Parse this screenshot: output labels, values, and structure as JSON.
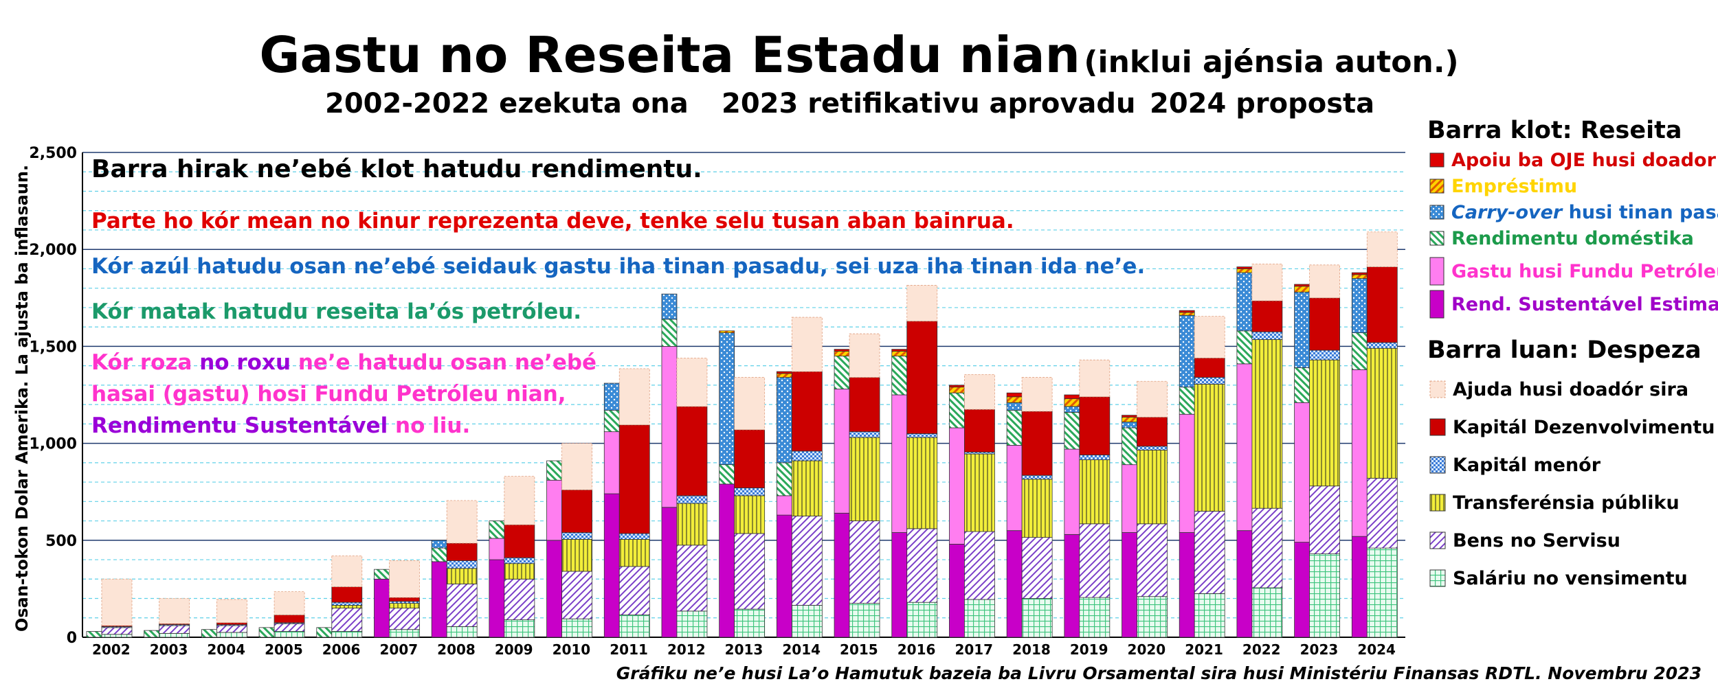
{
  "title": {
    "main": "Gastu no Reseita Estadu nian",
    "suffix": "(inklui ajénsia auton.)",
    "sub1": "2002-2022 ezekuta ona",
    "sub2": "2023 retifikativu aprovadu",
    "sub3": "2024 proposta"
  },
  "source_note": "Gráfiku ne’e husi La’o Hamutuk bazeia ba Livru Orsamental sira husi Ministériu Finansas RDTL.  Novembru 2023",
  "legend": {
    "revenue_heading": "Barra klot: Reseita",
    "spending_heading": "Barra luan: Despeza",
    "revenue": [
      {
        "key": "apoiu",
        "label": "Apoiu ba OJE husi doador",
        "text_color": "#d40000"
      },
      {
        "key": "emprestimu",
        "label": "Empréstimu",
        "text_color": "#ffd400"
      },
      {
        "key": "carry",
        "label_em": "Carry-over",
        "label_rest": " husi tinan pasadu",
        "text_color": "#1565c0"
      },
      {
        "key": "domestic",
        "label": "Rendimentu doméstika",
        "text_color": "#1b9a4a"
      },
      {
        "key": "gastuFP",
        "label": "Gastu husi Fundu Petróleu",
        "text_color": "#ff33cc"
      },
      {
        "key": "esi",
        "label": "Rend. Sustentável Estimadu",
        "text_color": "#a000c8"
      }
    ],
    "spending": [
      {
        "key": "ajuda",
        "label": "Ajuda husi doadór sira"
      },
      {
        "key": "kapitalDez",
        "label": "Kapitál Dezenvolvimentu"
      },
      {
        "key": "kapitalMenor",
        "label": "Kapitál menór"
      },
      {
        "key": "transferensia",
        "label": "Transferénsia públiku"
      },
      {
        "key": "bens",
        "label": "Bens no Servisu"
      },
      {
        "key": "salariu",
        "label": "Saláriu no vensimentu"
      }
    ]
  },
  "annotations": [
    {
      "text": "Barra hirak ne’ebé klot hatudu rendimentu.",
      "color": "#000000"
    },
    {
      "text": "Parte ho kór mean no kinur reprezenta deve, tenke selu tusan aban bainrua.",
      "color": "#e00000"
    },
    {
      "text": "Kór azúl hatudu osan ne’ebé seidauk gastu iha tinan pasadu, sei uza iha tinan ida ne’e.",
      "color": "#1565c0"
    },
    {
      "text": "Kór matak hatudu reseita la’ós petróleu.",
      "color": "#1b9a6a"
    },
    {
      "text": "Kór roza",
      "color": "#ff33cc"
    },
    {
      "text": "no roxu",
      "color": "#9a00d8"
    },
    {
      "text": "ne’e hatudu osan ne’ebé",
      "color": "#ff33cc"
    },
    {
      "text": "hasai (gastu) hosi Fundu Petróleu nian,",
      "color": "#ff33cc"
    },
    {
      "text": "Rendimentu Sustentável",
      "color": "#9a00d8"
    },
    {
      "text": "no liu.",
      "color": "#ff33cc"
    }
  ],
  "colors": {
    "salariu": "#3cc47c",
    "bens": "#7a3fc8",
    "transferensia": "#f2ee3a",
    "kapitalMenor": "#3a7ad6",
    "kapitalDez": "#cc0000",
    "ajuda": "#fce4d6",
    "esi": "#c800c8",
    "gastuFP": "#ff7ef0",
    "domestic": "#2aa85a",
    "carry": "#3a8ad6",
    "emprestimu": "#f5a623",
    "apoiu": "#dd0000"
  },
  "chart_data": {
    "type": "bar",
    "title": "Gastu no Reseita Estadu nian (inklui ajénsia auton.)",
    "ylabel": "Osan-tokon Dolar Amerika.   La ajusta ba inflasaun.",
    "ylim": [
      0,
      2500
    ],
    "y_ticks": [
      "0",
      "500",
      "1,000",
      "1,500",
      "2,000",
      "2,500"
    ],
    "grid": true,
    "categories": [
      "2002",
      "2003",
      "2004",
      "2005",
      "2006",
      "2007",
      "2008",
      "2009",
      "2010",
      "2011",
      "2012",
      "2013",
      "2014",
      "2015",
      "2016",
      "2017",
      "2018",
      "2019",
      "2020",
      "2021",
      "2022",
      "2023",
      "2024"
    ],
    "revenue_series": [
      {
        "name": "Rend. Sustentável Estimadu",
        "key": "esi",
        "values": [
          0,
          0,
          0,
          0,
          0,
          300,
          390,
          400,
          500,
          740,
          670,
          790,
          630,
          640,
          540,
          480,
          550,
          530,
          540,
          540,
          550,
          490,
          520
        ]
      },
      {
        "name": "Gastu husi Fundu Petróleu",
        "key": "gastuFP",
        "values": [
          0,
          0,
          0,
          0,
          0,
          0,
          0,
          110,
          310,
          320,
          830,
          0,
          100,
          640,
          710,
          600,
          440,
          440,
          350,
          610,
          860,
          720,
          860
        ]
      },
      {
        "name": "Rendimentu doméstika",
        "key": "domestic",
        "values": [
          30,
          35,
          40,
          50,
          50,
          50,
          70,
          90,
          100,
          110,
          140,
          100,
          170,
          170,
          200,
          180,
          180,
          190,
          190,
          140,
          170,
          180,
          190
        ]
      },
      {
        "name": "Carry-over husi tinan pasadu",
        "key": "carry",
        "values": [
          0,
          0,
          0,
          0,
          0,
          0,
          40,
          0,
          0,
          140,
          130,
          680,
          440,
          0,
          0,
          0,
          40,
          30,
          30,
          370,
          300,
          390,
          280
        ]
      },
      {
        "name": "Empréstimu",
        "key": "emprestimu",
        "values": [
          0,
          0,
          0,
          0,
          0,
          0,
          0,
          0,
          0,
          0,
          0,
          10,
          20,
          25,
          25,
          30,
          30,
          40,
          25,
          15,
          20,
          30,
          20
        ]
      },
      {
        "name": "Apoiu ba OJE husi doador",
        "key": "apoiu",
        "values": [
          0,
          0,
          0,
          0,
          0,
          0,
          0,
          0,
          0,
          0,
          0,
          0,
          10,
          10,
          10,
          10,
          20,
          20,
          10,
          10,
          10,
          10,
          10
        ]
      }
    ],
    "spending_series": [
      {
        "name": "Saláriu no vensimentu",
        "key": "salariu",
        "values": [
          15,
          20,
          25,
          30,
          30,
          40,
          55,
          90,
          95,
          115,
          135,
          145,
          165,
          175,
          180,
          195,
          200,
          205,
          210,
          225,
          255,
          430,
          460
        ]
      },
      {
        "name": "Bens no Servisu",
        "key": "bens",
        "values": [
          35,
          40,
          35,
          40,
          120,
          110,
          220,
          210,
          245,
          250,
          340,
          390,
          460,
          425,
          380,
          350,
          315,
          380,
          375,
          425,
          410,
          350,
          360
        ]
      },
      {
        "name": "Transferénsia públiku",
        "key": "transferensia",
        "values": [
          0,
          0,
          0,
          0,
          15,
          25,
          80,
          80,
          165,
          140,
          215,
          195,
          285,
          430,
          470,
          400,
          300,
          330,
          380,
          655,
          870,
          650,
          670
        ]
      },
      {
        "name": "Kapitál menór",
        "key": "kapitalMenor",
        "values": [
          5,
          5,
          5,
          5,
          15,
          10,
          40,
          30,
          35,
          30,
          40,
          40,
          50,
          30,
          20,
          10,
          20,
          25,
          20,
          35,
          40,
          50,
          30
        ]
      },
      {
        "name": "Kapitál Dezenvolvimentu",
        "key": "kapitalDez",
        "values": [
          5,
          5,
          10,
          40,
          80,
          20,
          90,
          170,
          220,
          560,
          460,
          300,
          410,
          280,
          580,
          220,
          330,
          300,
          150,
          100,
          160,
          270,
          390
        ]
      },
      {
        "name": "Ajuda husi doadór sira",
        "key": "ajuda",
        "values": [
          240,
          130,
          120,
          120,
          160,
          190,
          220,
          250,
          240,
          290,
          250,
          270,
          280,
          225,
          185,
          180,
          175,
          190,
          185,
          215,
          190,
          170,
          180
        ]
      }
    ]
  }
}
